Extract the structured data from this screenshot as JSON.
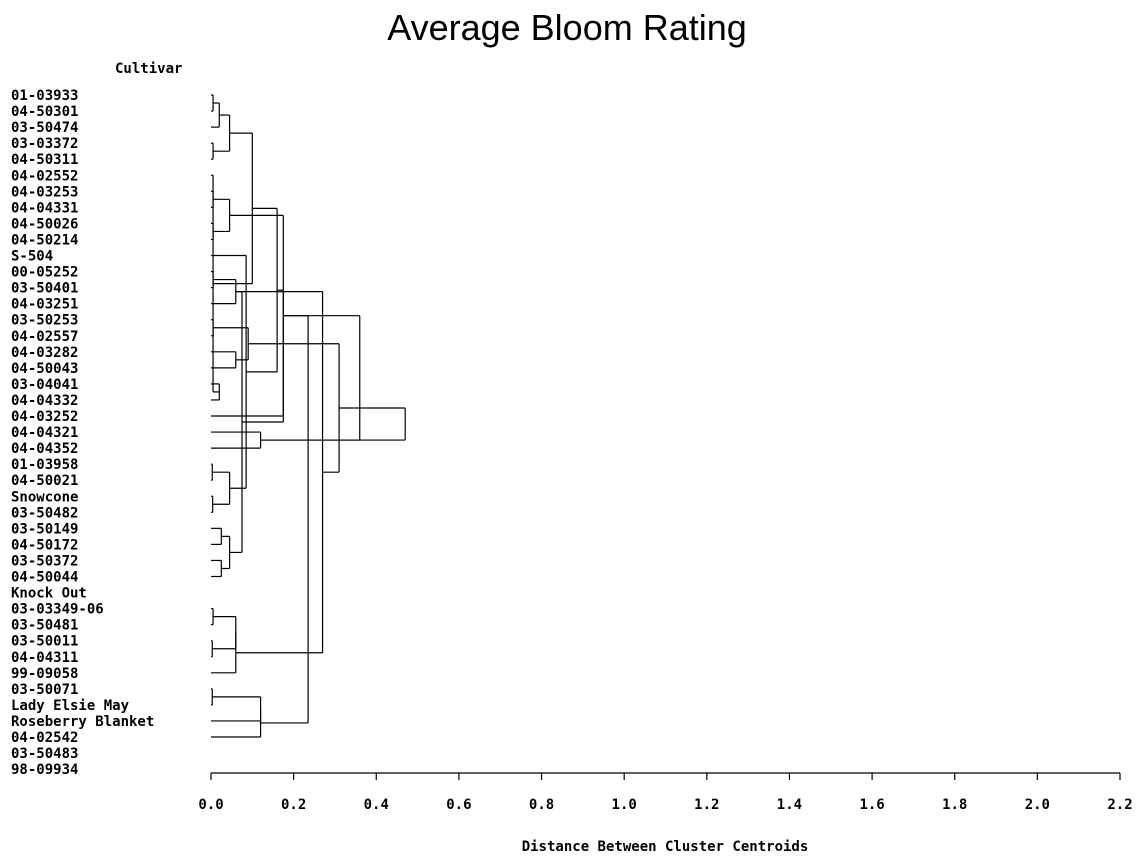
{
  "chart_data": {
    "type": "dendrogram",
    "title": "Average Bloom Rating",
    "ylabel": "Cultivar",
    "xlabel": "Distance Between Cluster Centroids",
    "xlim": [
      0,
      2.2
    ],
    "ticks": [
      "0.0",
      "0.2",
      "0.4",
      "0.6",
      "0.8",
      "1.0",
      "1.2",
      "1.4",
      "1.6",
      "1.8",
      "2.0",
      "2.2"
    ],
    "leaves": [
      "01-03933",
      "04-50301",
      "03-50474",
      "03-03372",
      "04-50311",
      "04-02552",
      "04-03253",
      "04-04331",
      "04-50026",
      "04-50214",
      "S-504",
      "00-05252",
      "03-50401",
      "04-03251",
      "03-50253",
      "04-02557",
      "04-03282",
      "04-50043",
      "03-04041",
      "04-04332",
      "04-03252",
      "04-04321",
      "04-04352",
      "01-03958",
      "04-50021",
      "Snowcone",
      "03-50482",
      "03-50149",
      "04-50172",
      "03-50372",
      "04-50044",
      "Knock Out",
      "03-03349-06",
      "03-50481",
      "03-50011",
      "04-04311",
      "99-09058",
      "03-50071",
      "Lady Elsie May",
      "Roseberry Blanket",
      "04-02542",
      "03-50483",
      "98-09934"
    ],
    "merges": [
      {
        "a": 0,
        "b": 1,
        "d": 0.005
      },
      {
        "a": 3,
        "b": 4,
        "d": 0.005
      },
      {
        "a": 6,
        "b": 7,
        "d": 0.005
      },
      {
        "a": 8,
        "b": 9,
        "d": 0.005
      },
      {
        "a": 11,
        "b": 12,
        "d": 0.005
      },
      {
        "a": 14,
        "b": 15,
        "d": 0.005
      },
      {
        "a": 23,
        "b": 24,
        "d": 0.003
      },
      {
        "a": 25,
        "b": 26,
        "d": 0.004
      },
      {
        "a": 32,
        "b": 33,
        "d": 0.005
      },
      {
        "a": 34,
        "b": 35,
        "d": 0.003
      },
      {
        "a": 37,
        "b": 38,
        "d": 0.003
      },
      {
        "a": 18,
        "b": 19,
        "d": 0.02
      },
      {
        "a": 27,
        "b": 28,
        "d": 0.025
      },
      {
        "a": 29,
        "b": 30,
        "d": 0.025
      },
      {
        "a": 43,
        "b": 2,
        "d": 0.02
      },
      {
        "a": 54,
        "b": 5,
        "d": 0.005
      },
      {
        "a": 57,
        "b": 44,
        "d": 0.045
      },
      {
        "a": 45,
        "b": 46,
        "d": 0.045
      },
      {
        "a": 55,
        "b": 56,
        "d": 0.045
      },
      {
        "a": 49,
        "b": 50,
        "d": 0.045
      },
      {
        "a": 47,
        "b": 13,
        "d": 0.06
      },
      {
        "a": 16,
        "b": 17,
        "d": 0.06
      },
      {
        "a": 51,
        "b": 52,
        "d": 0.06
      },
      {
        "a": 62,
        "b": 10,
        "d": 0.085
      },
      {
        "a": 48,
        "b": 64,
        "d": 0.09
      },
      {
        "a": 59,
        "b": 58,
        "d": 0.1
      },
      {
        "a": 53,
        "b": 39,
        "d": 0.12
      },
      {
        "a": 21,
        "b": 22,
        "d": 0.12
      },
      {
        "a": 68,
        "b": 66,
        "d": 0.16
      },
      {
        "a": 65,
        "b": 36,
        "d": 0.06
      },
      {
        "a": 61,
        "b": 63,
        "d": 0.075
      },
      {
        "a": 60,
        "b": 20,
        "d": 0.175
      },
      {
        "a": 71,
        "b": 73,
        "d": 0.175
      },
      {
        "a": 72,
        "b": 63,
        "d": 0.27
      },
      {
        "a": 69,
        "b": 40,
        "d": 0.12
      },
      {
        "a": 76,
        "b": 67,
        "d": 0.31
      },
      {
        "a": 77,
        "b": 74,
        "d": 0.235
      },
      {
        "a": 74,
        "b": 70,
        "d": 0.36
      },
      {
        "a": 78,
        "b": 70,
        "d": 0.47
      }
    ]
  }
}
